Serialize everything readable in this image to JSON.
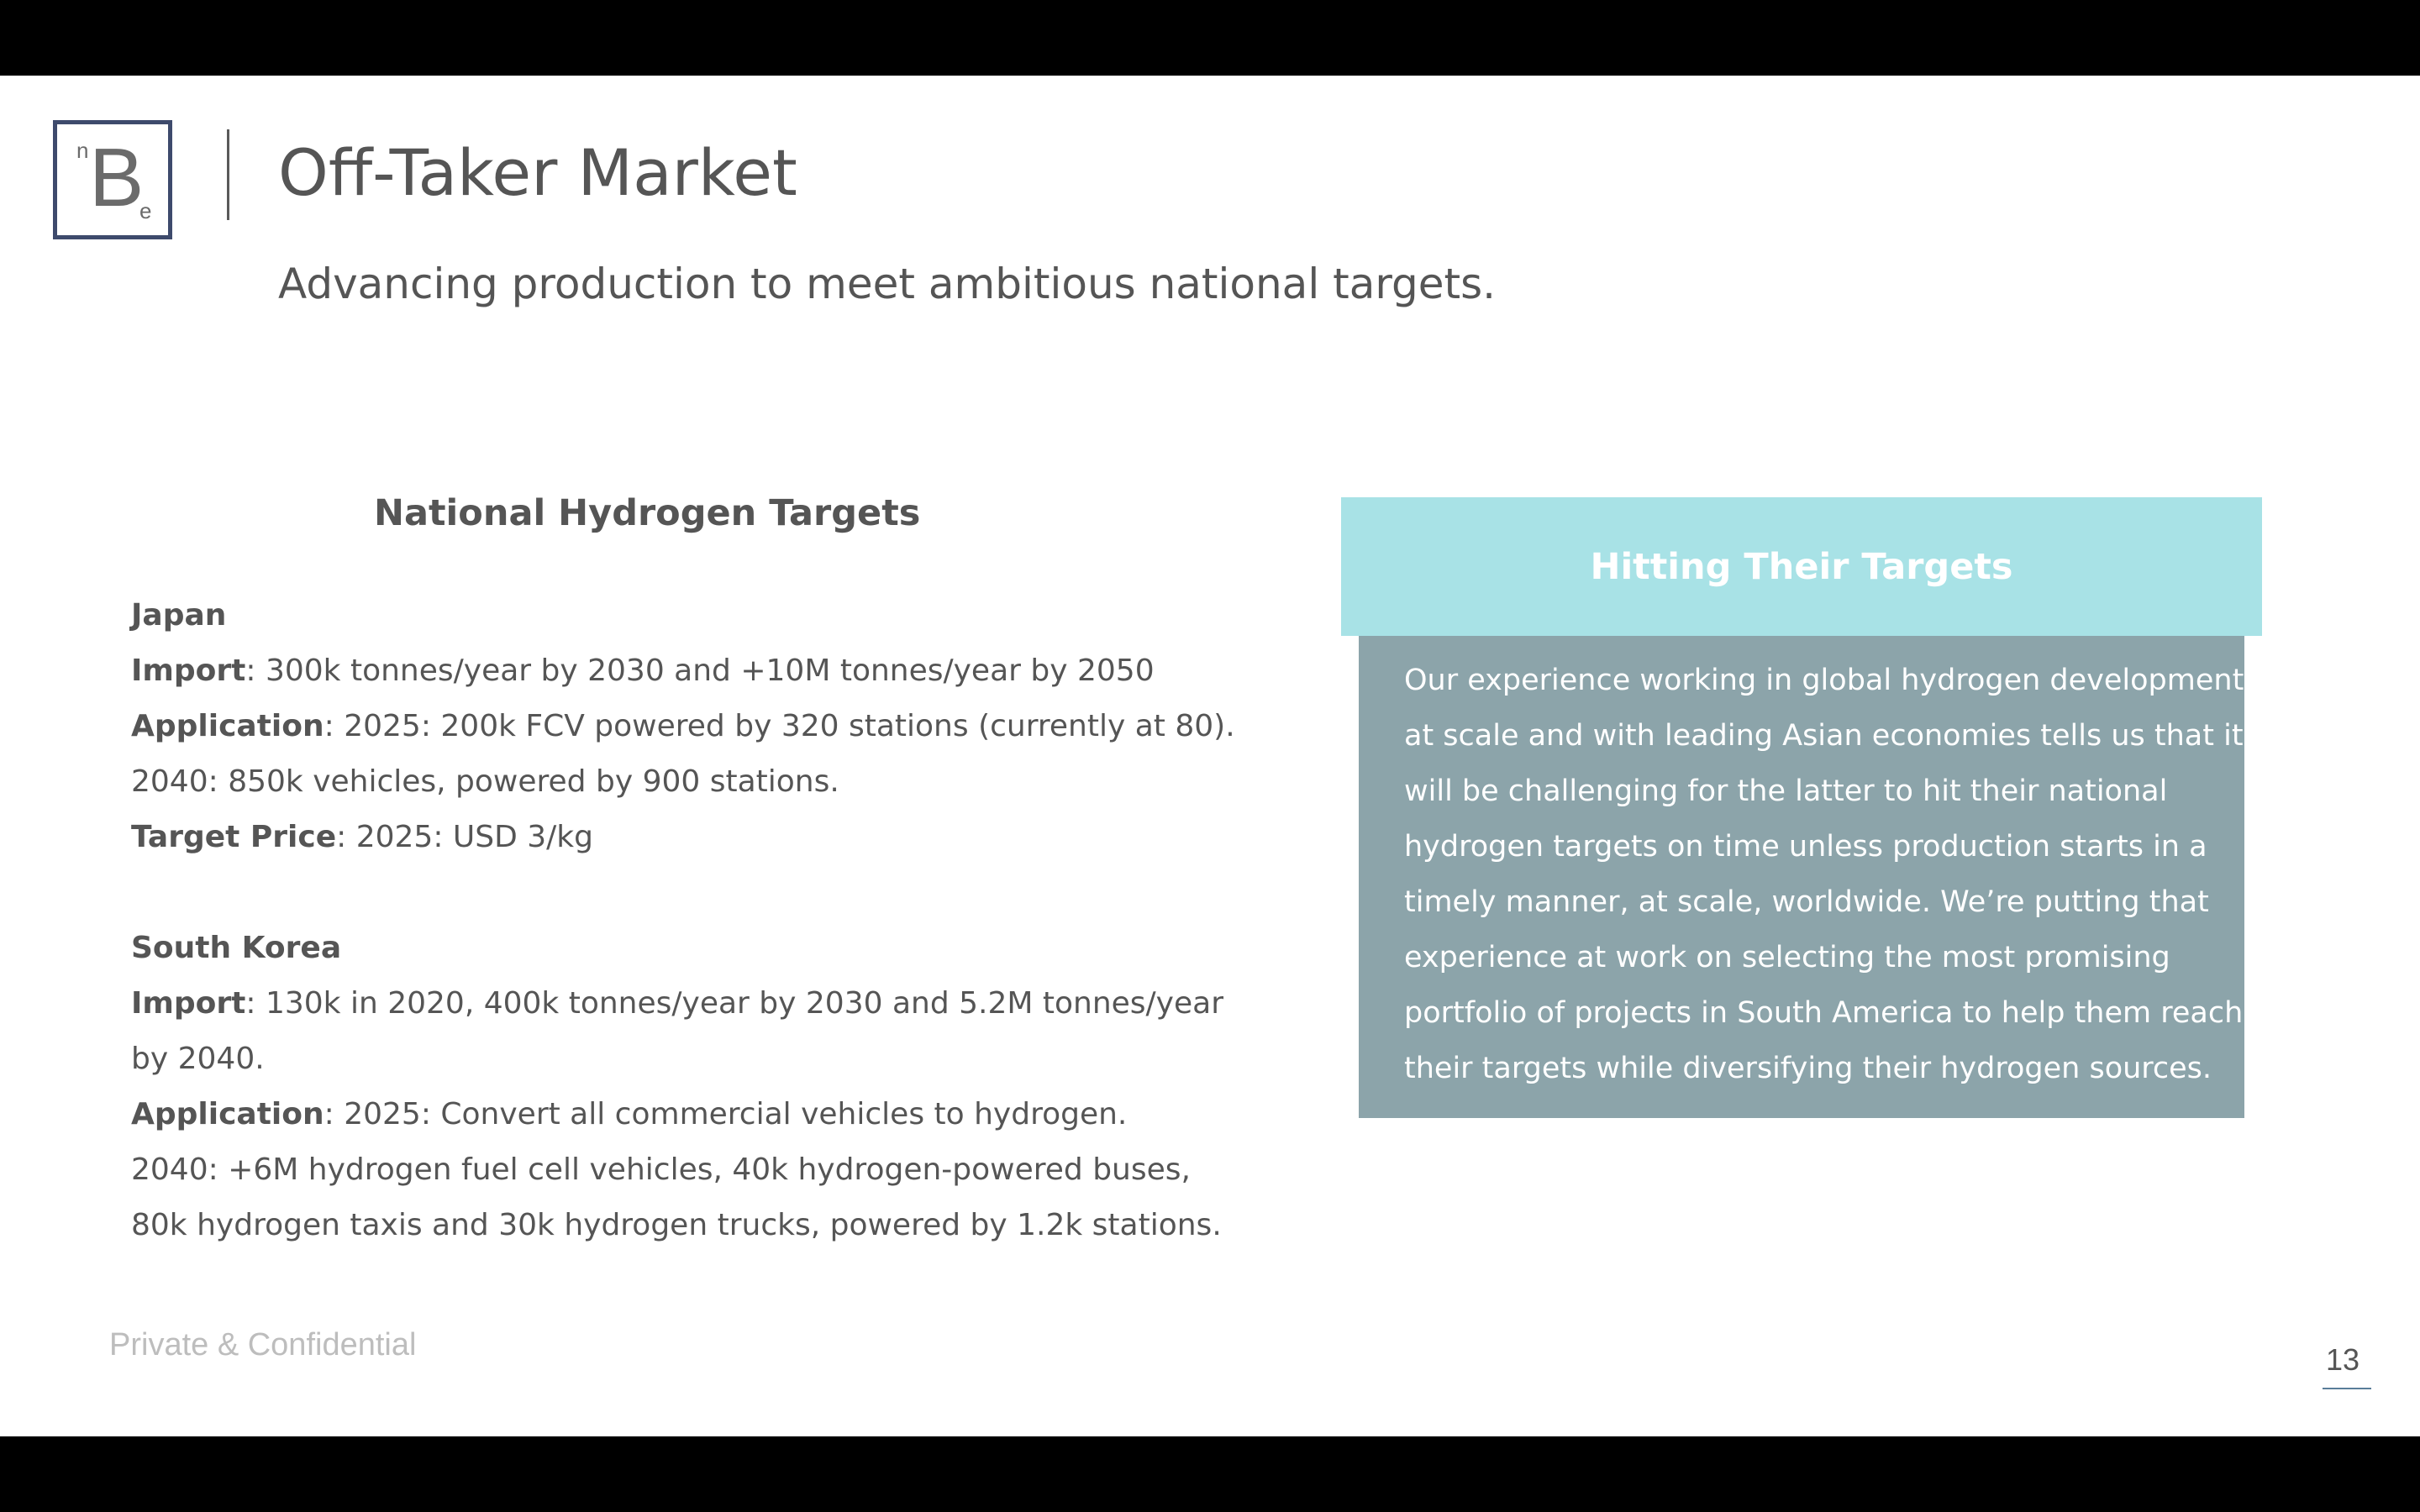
{
  "logo": {
    "letter": "B",
    "superscript": "n",
    "subscript": "e"
  },
  "header": {
    "title": "Off-Taker Market",
    "subtitle": "Advancing production to meet ambitious national targets."
  },
  "targets": {
    "heading": "National Hydrogen Targets",
    "japan": {
      "name": "Japan",
      "import_label": "Import",
      "import_text": ": 300k tonnes/year by 2030 and +10M tonnes/year by 2050",
      "application_label": "Application",
      "application_text": ": 2025: 200k FCV powered by 320 stations (currently at 80).",
      "application_line2": "2040: 850k vehicles, powered by 900 stations.",
      "price_label": "Target Price",
      "price_text": ": 2025: USD 3/kg"
    },
    "south_korea": {
      "name": "South Korea",
      "import_label": "Import",
      "import_text": ": 130k in 2020, 400k tonnes/year by 2030 and 5.2M tonnes/year",
      "import_line2": "by 2040.",
      "application_label": "Application",
      "application_text": ": 2025: Convert all commercial vehicles to hydrogen.",
      "application_line2": "2040: +6M hydrogen fuel cell vehicles, 40k hydrogen-powered buses,",
      "application_line3": "80k hydrogen taxis and 30k hydrogen trucks, powered by 1.2k stations."
    }
  },
  "card": {
    "title": "Hitting Their Targets",
    "lines": [
      "Our experience working in global hydrogen developments",
      "at scale and with leading Asian economies tells us that it",
      "will be challenging for the latter to hit their national",
      "hydrogen targets on time unless production starts in a",
      "timely manner, at scale, worldwide. We’re putting that",
      "experience at work on selecting the most promising",
      "portfolio of projects in South America to help them reach",
      "their targets while diversifying their hydrogen sources."
    ]
  },
  "footer": {
    "confidential": "Private & Confidential",
    "page_number": "13"
  },
  "colors": {
    "card_header_bg": "#a8e2e6",
    "card_body_bg": "#8ca4aa",
    "logo_border": "#3e4a6c",
    "text": "#555555"
  }
}
